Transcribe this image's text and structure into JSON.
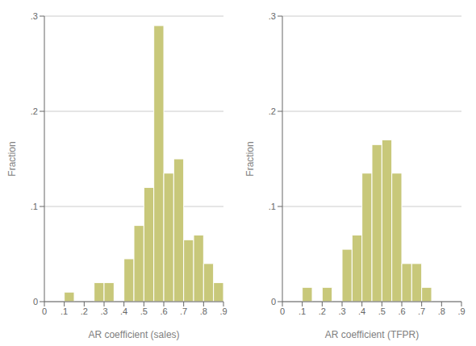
{
  "chart_data": [
    {
      "type": "histogram",
      "xlabel": "AR coefficient (sales)",
      "ylabel": "Fraction",
      "bins": [
        0.1,
        0.15,
        0.2,
        0.25,
        0.3,
        0.35,
        0.4,
        0.45,
        0.5,
        0.55,
        0.6,
        0.65,
        0.7,
        0.75,
        0.8,
        0.85,
        0.9
      ],
      "values": [
        0.01,
        0.0,
        0.0,
        0.02,
        0.02,
        0.0,
        0.045,
        0.08,
        0.12,
        0.29,
        0.135,
        0.15,
        0.065,
        0.07,
        0.04,
        0.02
      ],
      "color": "#c8c87a",
      "xlim": [
        0,
        0.9
      ],
      "ylim": [
        0,
        0.3
      ],
      "xticks": [
        0,
        {
          "value": 0.1,
          "label": ".1"
        },
        {
          "value": 0.2,
          "label": ".2"
        },
        {
          "value": 0.3,
          "label": ".3"
        },
        {
          "value": 0.4,
          "label": ".4"
        },
        {
          "value": 0.5,
          "label": ".5"
        },
        {
          "value": 0.6,
          "label": ".6"
        },
        {
          "value": 0.7,
          "label": ".7"
        },
        {
          "value": 0.8,
          "label": ".8"
        },
        {
          "value": 0.9,
          "label": ".9"
        }
      ],
      "yticks": [
        0,
        {
          "value": 0.1,
          "label": ".1"
        },
        {
          "value": 0.2,
          "label": ".2"
        },
        {
          "value": 0.3,
          "label": ".3"
        }
      ],
      "grid": true
    },
    {
      "type": "histogram",
      "xlabel": "AR coefficient (TFPR)",
      "ylabel": "Fraction",
      "bins": [
        0.1,
        0.15,
        0.2,
        0.25,
        0.3,
        0.35,
        0.4,
        0.45,
        0.5,
        0.55,
        0.6,
        0.65,
        0.7,
        0.75
      ],
      "values": [
        0.015,
        0.0,
        0.015,
        0.0,
        0.055,
        0.07,
        0.135,
        0.165,
        0.17,
        0.135,
        0.04,
        0.04,
        0.015
      ],
      "color": "#c8c87a",
      "xlim": [
        0,
        0.9
      ],
      "ylim": [
        0,
        0.3
      ],
      "xticks": [
        0,
        {
          "value": 0.1,
          "label": ".1"
        },
        {
          "value": 0.2,
          "label": ".2"
        },
        {
          "value": 0.3,
          "label": ".3"
        },
        {
          "value": 0.4,
          "label": ".4"
        },
        {
          "value": 0.5,
          "label": ".5"
        },
        {
          "value": 0.6,
          "label": ".6"
        },
        {
          "value": 0.7,
          "label": ".7"
        },
        {
          "value": 0.8,
          "label": ".8"
        },
        {
          "value": 0.9,
          "label": ".9"
        }
      ],
      "yticks": [
        0,
        {
          "value": 0.1,
          "label": ".1"
        },
        {
          "value": 0.2,
          "label": ".2"
        },
        {
          "value": 0.3,
          "label": ".3"
        }
      ],
      "grid": true
    }
  ]
}
